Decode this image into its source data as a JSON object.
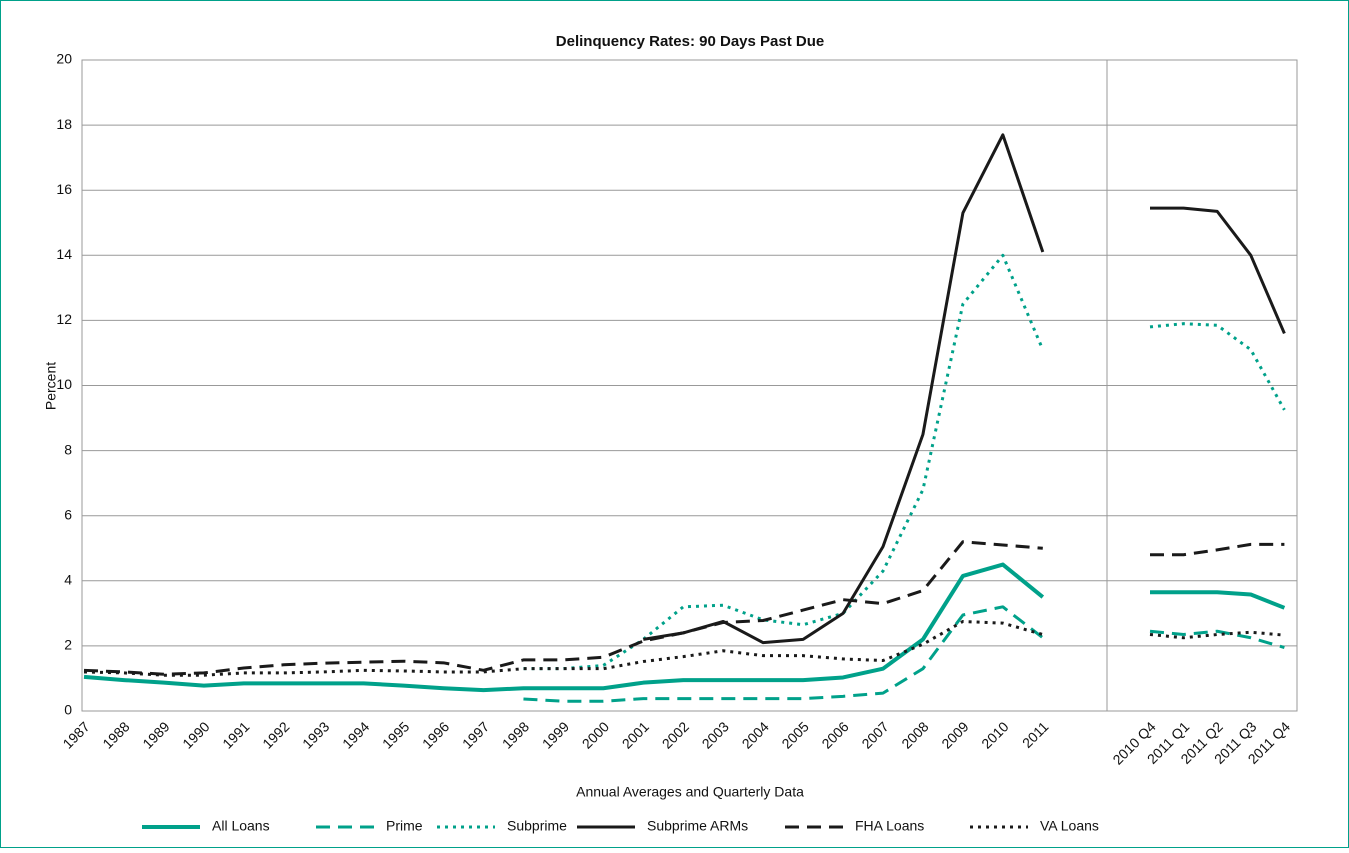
{
  "chart_data": {
    "type": "line",
    "title": "Delinquency Rates: 90 Days Past Due",
    "y_label": "Percent",
    "x_label": "Annual Averages and Quarterly Data",
    "categories": [
      "1987",
      "1988",
      "1989",
      "1990",
      "1991",
      "1992",
      "1993",
      "1994",
      "1995",
      "1996",
      "1997",
      "1998",
      "1999",
      "2000",
      "2001",
      "2002",
      "2003",
      "2004",
      "2005",
      "2006",
      "2007",
      "2008",
      "2009",
      "2010",
      "2011",
      null,
      "2010 Q4",
      "2011 Q1",
      "2011 Q2",
      "2011 Q3",
      "2011 Q4"
    ],
    "ylim": [
      0,
      20
    ],
    "yticks": [
      0,
      2,
      4,
      6,
      8,
      10,
      12,
      14,
      16,
      18,
      20
    ],
    "grid": true,
    "legend": "bottom",
    "series": [
      {
        "name": "All Loans",
        "color": "#00a18a",
        "dash": "solid",
        "values": [
          1.05,
          0.95,
          0.87,
          0.78,
          0.85,
          0.85,
          0.85,
          0.85,
          0.78,
          0.7,
          0.64,
          0.7,
          0.7,
          0.7,
          0.87,
          0.95,
          0.95,
          0.95,
          0.95,
          1.03,
          1.3,
          2.2,
          4.15,
          4.5,
          3.5,
          null,
          3.65,
          3.65,
          3.65,
          3.58,
          3.17
        ]
      },
      {
        "name": "Prime",
        "color": "#00a18a",
        "dash": "dashed",
        "values": [
          null,
          null,
          null,
          null,
          null,
          null,
          null,
          null,
          null,
          null,
          null,
          0.37,
          0.3,
          0.3,
          0.38,
          0.38,
          0.38,
          0.38,
          0.38,
          0.45,
          0.55,
          1.3,
          2.95,
          3.2,
          2.25,
          null,
          2.45,
          2.35,
          2.45,
          2.25,
          1.95
        ]
      },
      {
        "name": "Subprime",
        "color": "#00a18a",
        "dash": "dotted",
        "values": [
          null,
          null,
          null,
          null,
          null,
          null,
          null,
          null,
          null,
          null,
          null,
          1.3,
          1.3,
          1.4,
          2.2,
          3.2,
          3.25,
          2.8,
          2.65,
          3.0,
          4.3,
          6.8,
          12.5,
          14.0,
          11.1,
          null,
          11.8,
          11.9,
          11.85,
          11.1,
          9.25
        ]
      },
      {
        "name": "Subprime ARMs",
        "color": "#1a1a1a",
        "dash": "solid",
        "values": [
          null,
          null,
          null,
          null,
          null,
          null,
          null,
          null,
          null,
          null,
          null,
          null,
          null,
          null,
          2.2,
          2.4,
          2.75,
          2.1,
          2.2,
          3.0,
          5.05,
          8.5,
          15.3,
          17.7,
          14.1,
          null,
          15.45,
          15.45,
          15.35,
          14.0,
          11.6
        ]
      },
      {
        "name": "FHA Loans",
        "color": "#1a1a1a",
        "dash": "dashed",
        "values": [
          1.25,
          1.2,
          1.13,
          1.17,
          1.32,
          1.42,
          1.47,
          1.5,
          1.53,
          1.48,
          1.25,
          1.57,
          1.57,
          1.65,
          2.15,
          2.4,
          2.72,
          2.78,
          3.1,
          3.42,
          3.3,
          3.7,
          5.2,
          5.1,
          5.0,
          null,
          4.8,
          4.8,
          4.95,
          5.12,
          5.12
        ]
      },
      {
        "name": "VA Loans",
        "color": "#1a1a1a",
        "dash": "dotted",
        "values": [
          1.2,
          1.17,
          1.1,
          1.1,
          1.17,
          1.17,
          1.2,
          1.25,
          1.23,
          1.2,
          1.2,
          1.3,
          1.3,
          1.3,
          1.52,
          1.67,
          1.85,
          1.7,
          1.7,
          1.6,
          1.55,
          2.05,
          2.75,
          2.7,
          2.35,
          null,
          2.35,
          2.25,
          2.35,
          2.42,
          2.33
        ]
      }
    ]
  }
}
